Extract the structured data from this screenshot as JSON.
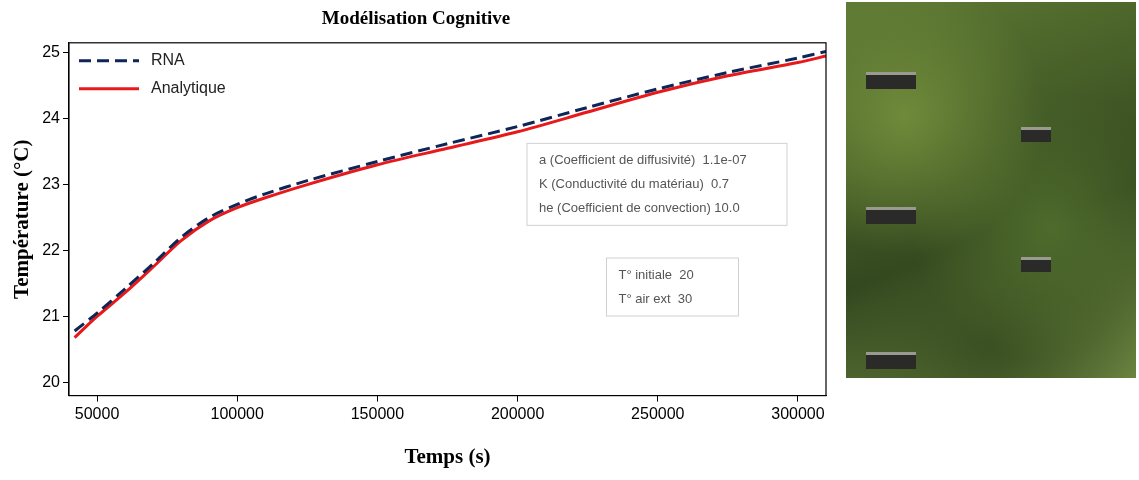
{
  "chart_data": {
    "type": "line",
    "title": "Modélisation Cognitive",
    "x_label": "Temps (s)",
    "y_label": "Température (°C)",
    "x": [
      42000,
      50000,
      60000,
      70000,
      80000,
      90000,
      100000,
      110000,
      125000,
      150000,
      175000,
      200000,
      225000,
      250000,
      275000,
      300000,
      310000
    ],
    "series": [
      {
        "name": "RNA",
        "color": "#0d2557",
        "line_style": "dashed",
        "values": [
          20.78,
          21.05,
          21.42,
          21.8,
          22.2,
          22.5,
          22.7,
          22.86,
          23.06,
          23.35,
          23.62,
          23.88,
          24.17,
          24.45,
          24.7,
          24.92,
          25.02
        ]
      },
      {
        "name": "Analytique",
        "color": "#e8191a",
        "line_style": "solid",
        "values": [
          20.68,
          21.0,
          21.36,
          21.75,
          22.15,
          22.45,
          22.65,
          22.8,
          23.0,
          23.3,
          23.55,
          23.8,
          24.1,
          24.4,
          24.65,
          24.85,
          24.95
        ]
      }
    ],
    "xlim": [
      40000,
      310000
    ],
    "xticks": [
      50000,
      100000,
      150000,
      200000,
      250000,
      300000
    ],
    "ylim": [
      19.8,
      25.15
    ],
    "yticks": [
      20,
      21,
      22,
      23,
      24,
      25
    ],
    "grid": false,
    "legend": "upper left",
    "annotations": [
      [
        "a (Coefficient de diffusivité)  1.1e-07",
        "K (Conductivité du matériau)  0.7",
        "he (Coefficient de convection) 10.0"
      ],
      [
        "T° initiale  20",
        "T° air ext  30"
      ]
    ]
  }
}
